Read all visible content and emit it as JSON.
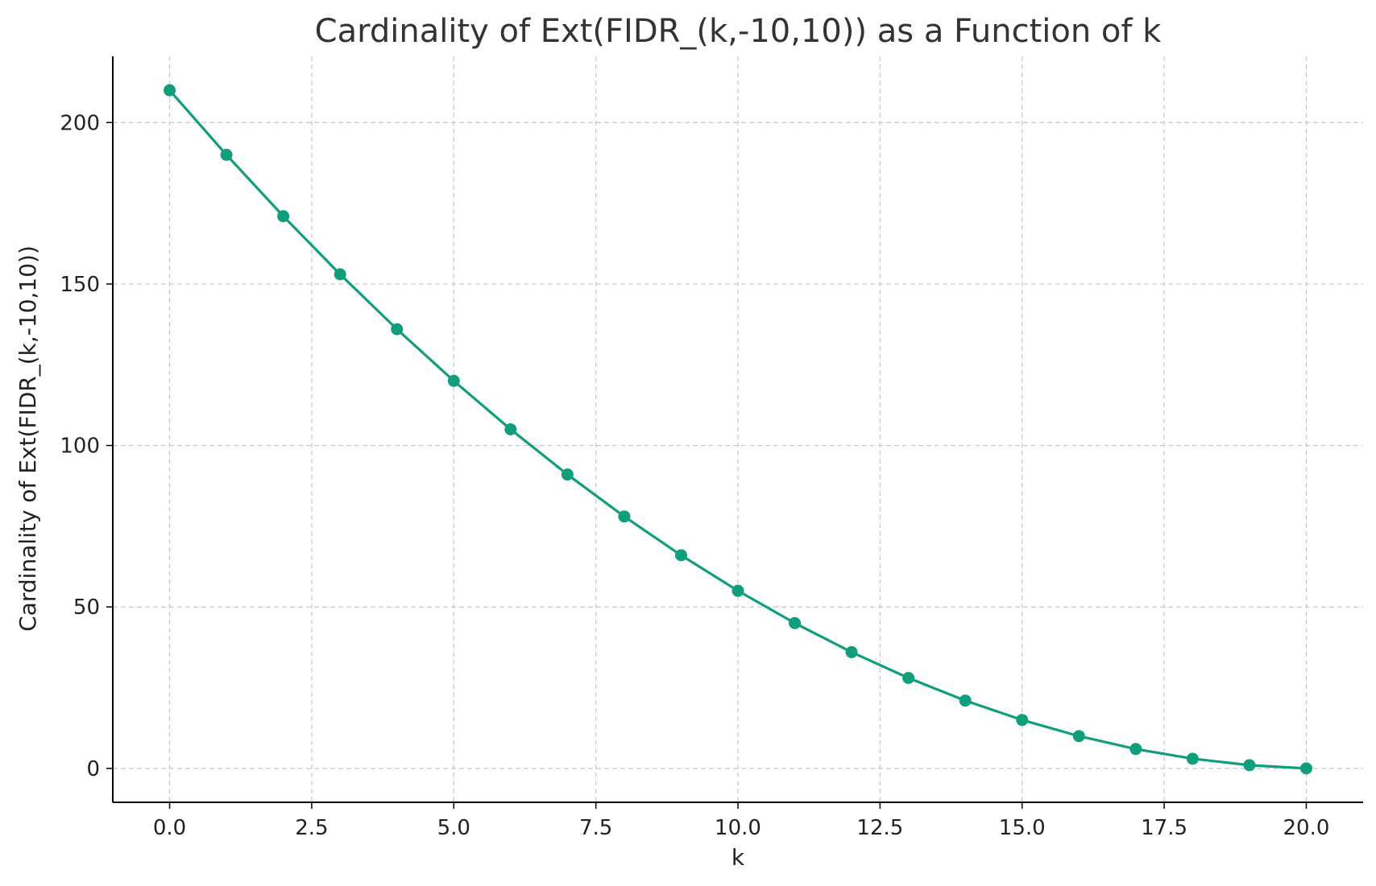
{
  "chart_data": {
    "type": "line",
    "title": "Cardinality of Ext(FIDR_(k,-10,10)) as a Function of k",
    "xlabel": "k",
    "ylabel": "Cardinality of Ext(FIDR_(k,-10,10))",
    "xlim": [
      -1,
      21
    ],
    "ylim": [
      -10.5,
      220.5
    ],
    "xticks": [
      0.0,
      2.5,
      5.0,
      7.5,
      10.0,
      12.5,
      15.0,
      17.5,
      20.0
    ],
    "xtick_labels": [
      "0.0",
      "2.5",
      "5.0",
      "7.5",
      "10.0",
      "12.5",
      "15.0",
      "17.5",
      "20.0"
    ],
    "yticks": [
      0,
      50,
      100,
      150,
      200
    ],
    "ytick_labels": [
      "0",
      "50",
      "100",
      "150",
      "200"
    ],
    "grid": true,
    "color": "#119e7c",
    "series": [
      {
        "x": [
          0,
          1,
          2,
          3,
          4,
          5,
          6,
          7,
          8,
          9,
          10,
          11,
          12,
          13,
          14,
          15,
          16,
          17,
          18,
          19,
          20
        ],
        "y": [
          210,
          190,
          171,
          153,
          136,
          120,
          105,
          91,
          78,
          66,
          55,
          45,
          36,
          28,
          21,
          15,
          10,
          6,
          3,
          1,
          0
        ]
      }
    ]
  }
}
